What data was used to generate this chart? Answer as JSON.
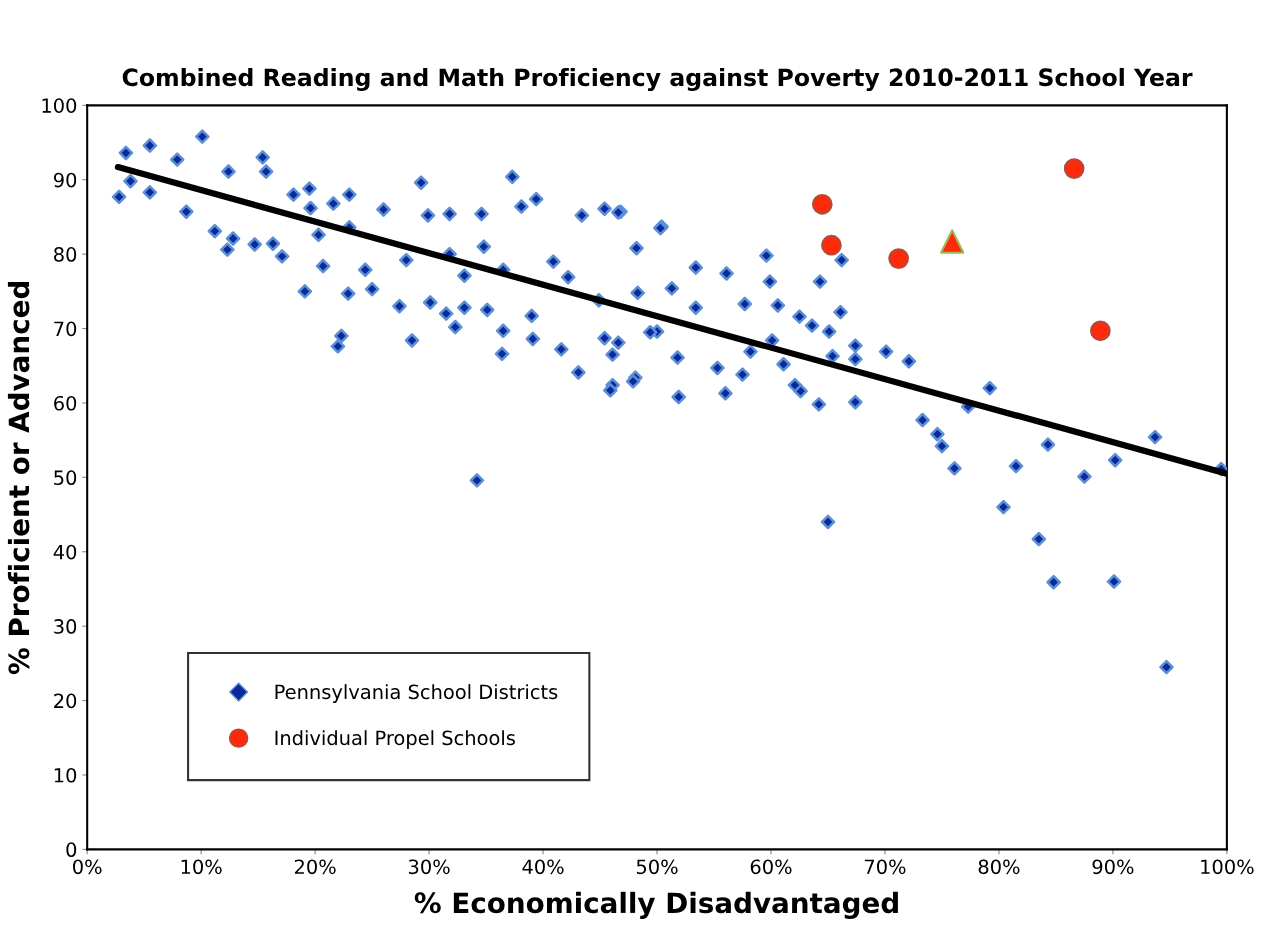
{
  "chart_data": {
    "type": "scatter",
    "title": "Combined Reading and Math Proficiency against Poverty 2010-2011 School Year",
    "xlabel": "% Economically Disadvantaged",
    "ylabel": "% Proficient or Advanced",
    "xlim": [
      0,
      100
    ],
    "ylim": [
      0,
      100
    ],
    "xticks": [
      {
        "value": 0,
        "label": "0%"
      },
      {
        "value": 10,
        "label": "10%"
      },
      {
        "value": 20,
        "label": "20%"
      },
      {
        "value": 30,
        "label": "30%"
      },
      {
        "value": 40,
        "label": "40%"
      },
      {
        "value": 50,
        "label": "50%"
      },
      {
        "value": 60,
        "label": "60%"
      },
      {
        "value": 70,
        "label": "70%"
      },
      {
        "value": 80,
        "label": "80%"
      },
      {
        "value": 90,
        "label": "90%"
      },
      {
        "value": 100,
        "label": "100%"
      }
    ],
    "yticks": [
      0,
      10,
      20,
      30,
      40,
      50,
      60,
      70,
      80,
      90,
      100
    ],
    "grid": false,
    "legend": "bottom left",
    "series": [
      {
        "name": "Pennsylvania School Districts",
        "marker": "diamond",
        "color": "#0a2a9c",
        "x": [
          2.8,
          3.4,
          3.8,
          5.5,
          5.5,
          7.9,
          10.1,
          8.7,
          11.2,
          12.3,
          12.8,
          12.4,
          15.4,
          15.7,
          14.7,
          16.3,
          17.1,
          18.1,
          19.1,
          19.5,
          20.7,
          21.6,
          22.0,
          22.3,
          23.0,
          22.9,
          24.4,
          25.0,
          26.0,
          27.4,
          28.5,
          28.0,
          29.3,
          29.9,
          30.1,
          31.5,
          31.8,
          32.3,
          33.1,
          34.2,
          34.6,
          35.1,
          36.4,
          37.3,
          36.5,
          38.1,
          39.4,
          39.1,
          41.6,
          43.1,
          46.1,
          48.1,
          43.4,
          45.4,
          46.8,
          50.4,
          51.3,
          46.1,
          40.9,
          36.5,
          31.8,
          34.8,
          42.2,
          44.9,
          48.3,
          50.0,
          46.6,
          39.0,
          33.1,
          23.0,
          20.3,
          19.6,
          59.6,
          66.2,
          64.3,
          59.9,
          66.1,
          60.6,
          62.5,
          63.6,
          65.1,
          67.4,
          70.1,
          72.1,
          67.4,
          65.4,
          79.2,
          77.3,
          73.3,
          74.6,
          75.0,
          76.1,
          81.5,
          64.2,
          67.4,
          62.6,
          62.1,
          61.1,
          56.0,
          51.9,
          57.7,
          56.1,
          53.4,
          55.3,
          57.5,
          51.8,
          47.9,
          45.9,
          50.3,
          46.6,
          48.2,
          45.4,
          49.4,
          53.4,
          60.1,
          58.2,
          65.0,
          80.4,
          83.5,
          84.8,
          90.1,
          94.7,
          84.3,
          87.5,
          90.2,
          93.7,
          99.5
        ],
        "values": [
          87.7,
          93.6,
          89.8,
          94.6,
          88.3,
          92.7,
          95.8,
          85.7,
          83.1,
          80.6,
          82.1,
          91.1,
          93.0,
          91.1,
          81.3,
          81.4,
          79.7,
          88.0,
          75.0,
          88.8,
          78.4,
          86.8,
          67.6,
          69.0,
          88.0,
          74.7,
          77.9,
          75.3,
          86.0,
          73.0,
          68.4,
          79.2,
          89.6,
          85.2,
          73.5,
          72.0,
          85.4,
          70.2,
          72.8,
          49.6,
          85.4,
          72.5,
          66.6,
          90.4,
          69.7,
          86.4,
          87.4,
          68.6,
          67.2,
          64.1,
          62.4,
          63.4,
          85.2,
          86.1,
          85.7,
          83.7,
          75.4,
          66.5,
          79.0,
          77.9,
          80.0,
          81.0,
          76.9,
          73.8,
          74.8,
          69.6,
          68.1,
          71.7,
          77.1,
          83.6,
          82.6,
          86.2,
          79.8,
          79.2,
          76.3,
          76.3,
          72.2,
          73.1,
          71.6,
          70.4,
          69.6,
          67.7,
          66.9,
          65.6,
          65.9,
          66.3,
          62.0,
          59.5,
          57.7,
          55.8,
          54.2,
          51.2,
          51.5,
          59.8,
          60.1,
          61.6,
          62.4,
          65.2,
          61.3,
          60.8,
          73.3,
          77.4,
          78.2,
          64.7,
          63.8,
          66.1,
          62.9,
          61.7,
          83.5,
          85.6,
          80.8,
          68.7,
          69.5,
          72.8,
          68.4,
          66.9,
          44.0,
          46.0,
          41.7,
          35.9,
          36.0,
          24.5,
          54.4,
          50.1,
          52.3,
          55.4,
          51.1
        ]
      },
      {
        "name": "Individual Propel Schools",
        "marker": "circle",
        "color": "#ff2a0a",
        "x": [
          64.5,
          65.3,
          71.2,
          86.6,
          88.9
        ],
        "values": [
          86.7,
          81.2,
          79.4,
          91.5,
          69.7
        ]
      },
      {
        "marker": "triangle",
        "color": "#ff2a0a",
        "x": [
          75.9
        ],
        "values": [
          81.7
        ]
      },
      {
        "type": "line",
        "color": "#000000",
        "line_style": "solid",
        "marker": "none",
        "x": [
          2.7,
          100
        ],
        "values": [
          91.7,
          50.5
        ]
      }
    ]
  }
}
